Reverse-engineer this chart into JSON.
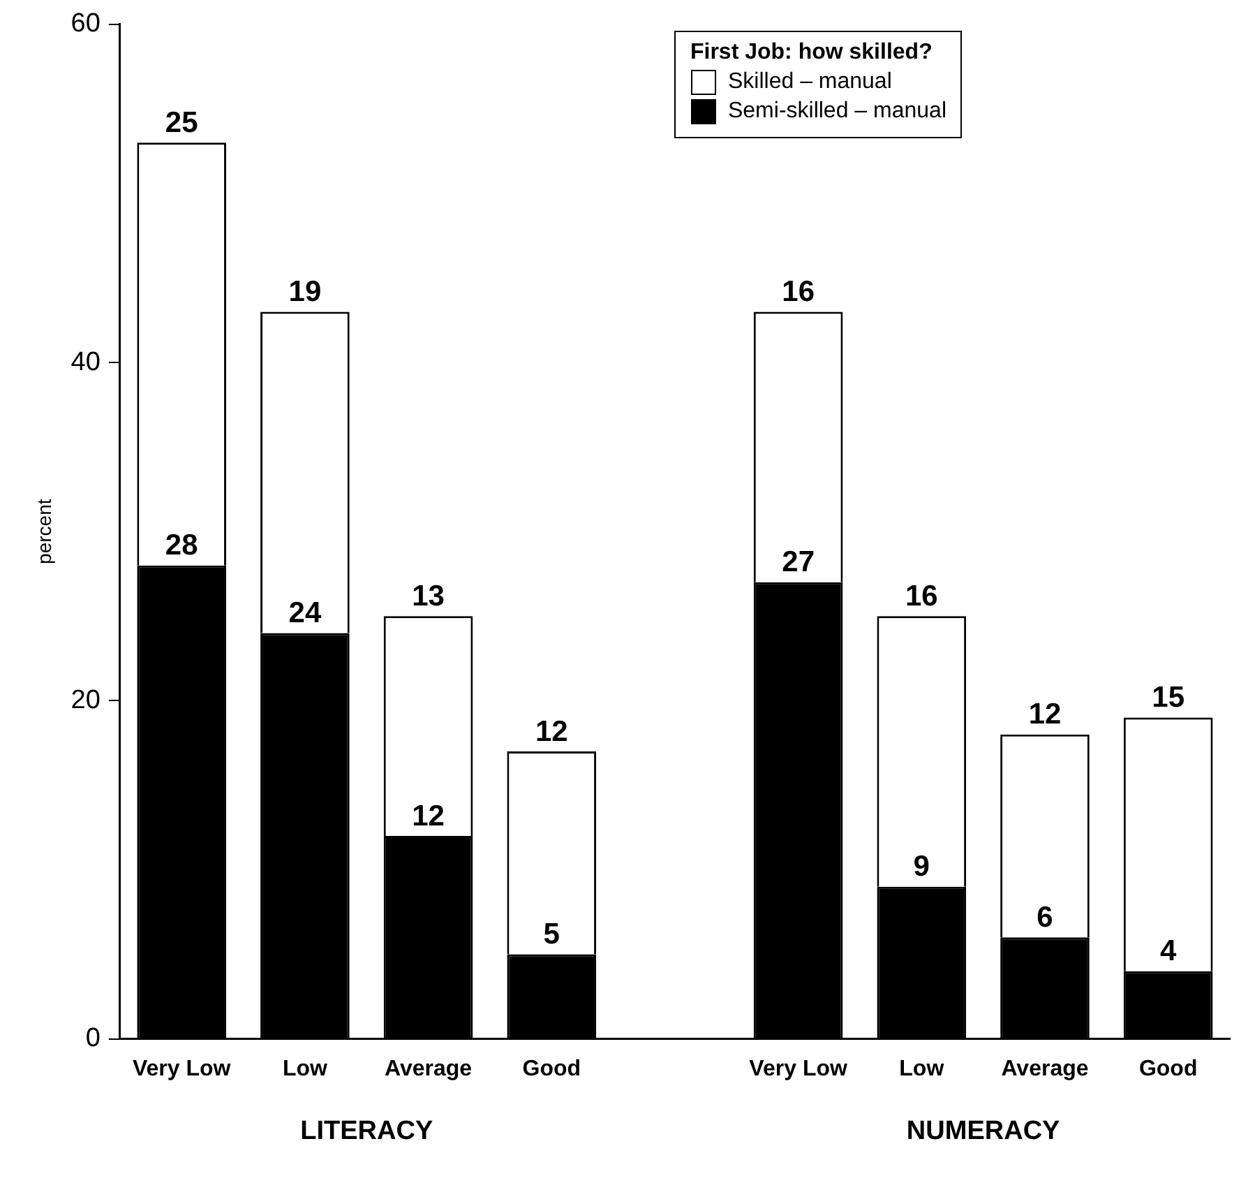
{
  "chart_data": {
    "type": "bar",
    "stacked": true,
    "ylabel": "percent",
    "legend_title": "First Job: how skilled?",
    "legend": "top right",
    "grid": false,
    "data_labels": true,
    "categories": [
      "Very Low",
      "Low",
      "Average",
      "Good",
      null,
      "Very Low",
      "Low",
      "Average",
      "Good"
    ],
    "series": [
      {
        "name": "Semi-skilled – manual",
        "color": "#000000",
        "values": [
          28,
          24,
          12,
          5,
          null,
          27,
          9,
          6,
          4
        ]
      },
      {
        "name": "Skilled – manual",
        "color": "#ffffff",
        "values": [
          25,
          19,
          13,
          12,
          null,
          16,
          16,
          12,
          15
        ]
      }
    ],
    "ylim": [
      0,
      60
    ],
    "yticks": [
      0,
      20,
      40,
      60
    ],
    "annotations": [
      "LITERACY",
      "NUMERACY"
    ]
  }
}
